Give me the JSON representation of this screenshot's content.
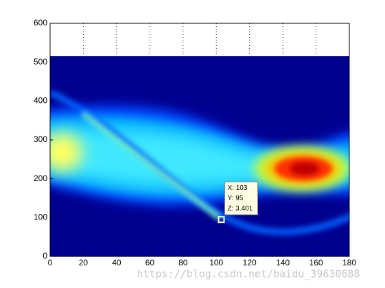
{
  "chart_data": {
    "type": "heatmap",
    "xlim": [
      0,
      180
    ],
    "xticks": [
      0,
      20,
      40,
      60,
      80,
      100,
      120,
      140,
      160,
      180
    ],
    "ylim": [
      0,
      600
    ],
    "yticks": [
      0,
      100,
      200,
      300,
      400,
      500,
      600
    ],
    "grid": true,
    "datatip": {
      "x": 103,
      "y": 95,
      "x_label": "X: 103",
      "y_label": "Y: 95",
      "z_label": "Z: 3.401"
    },
    "watermark": "https://blog.csdn.net/baidu_39630688"
  }
}
